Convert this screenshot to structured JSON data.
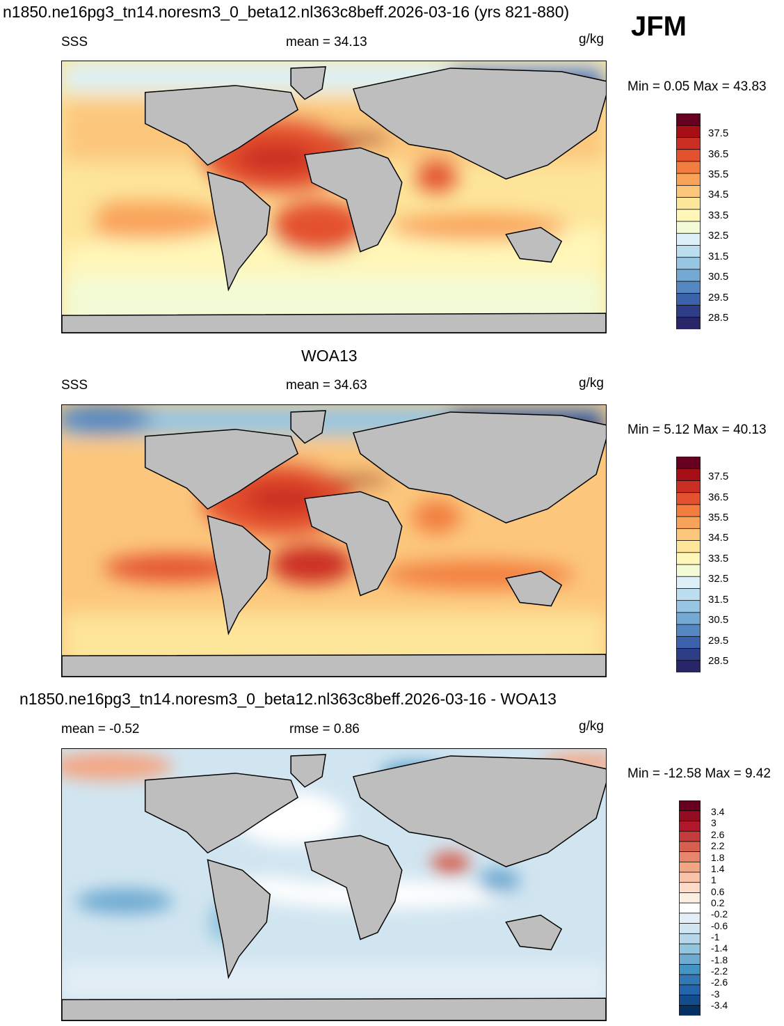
{
  "header": {
    "title": "n1850.ne16pg3_tn14.noresm3_0_beta12.nl363c8beff.2026-03-16 (yrs 821-880)",
    "season": "JFM"
  },
  "panels": [
    {
      "id": "model",
      "title": "",
      "left_label": "SSS",
      "center_label": "mean =  34.13",
      "units": "g/kg",
      "minmax": "Min =   0.05 Max =  43.83"
    },
    {
      "id": "obs",
      "title": "WOA13",
      "left_label": "SSS",
      "center_label": "mean =  34.63",
      "units": "g/kg",
      "minmax": "Min =   5.12 Max =  40.13"
    },
    {
      "id": "diff",
      "title": "n1850.ne16pg3_tn14.noresm3_0_beta12.nl363c8beff.2026-03-16 - WOA13",
      "left_label": "mean =  -0.52",
      "center_label": "rmse =   0.86",
      "units": "g/kg",
      "minmax": "Min = -12.58 Max =   9.42"
    }
  ],
  "colorbars": {
    "sss": {
      "labels": [
        "37.5",
        "36.5",
        "35.5",
        "34.5",
        "33.5",
        "32.5",
        "31.5",
        "30.5",
        "29.5",
        "28.5"
      ],
      "colors": [
        "#67001f",
        "#a50f15",
        "#cb2f24",
        "#e4512f",
        "#f27d3e",
        "#f9a35a",
        "#fcc77d",
        "#fde59a",
        "#fff7b8",
        "#f3fbd6",
        "#ddf0f7",
        "#bcdeef",
        "#97c6e3",
        "#74a9d4",
        "#5587c2",
        "#3b62aa",
        "#2d3d88",
        "#2a2468"
      ]
    },
    "diff": {
      "labels": [
        "3.4",
        "3",
        "2.6",
        "2.2",
        "1.8",
        "1.4",
        "1",
        "0.6",
        "0.2",
        "-0.2",
        "-0.6",
        "-1",
        "-1.4",
        "-1.8",
        "-2.2",
        "-2.6",
        "-3",
        "-3.4"
      ],
      "colors": [
        "#67001f",
        "#920d21",
        "#b2182b",
        "#c53a3a",
        "#d6604d",
        "#e8866c",
        "#f4a582",
        "#f8c3a8",
        "#fddbc7",
        "#fdeee4",
        "#ffffff",
        "#e3eef6",
        "#d1e5f0",
        "#b7d6ea",
        "#92c5de",
        "#6eaad1",
        "#4393c3",
        "#3378b6",
        "#2166ac",
        "#124c8a",
        "#053061"
      ]
    }
  },
  "fields": {
    "land": "#bebebe"
  }
}
